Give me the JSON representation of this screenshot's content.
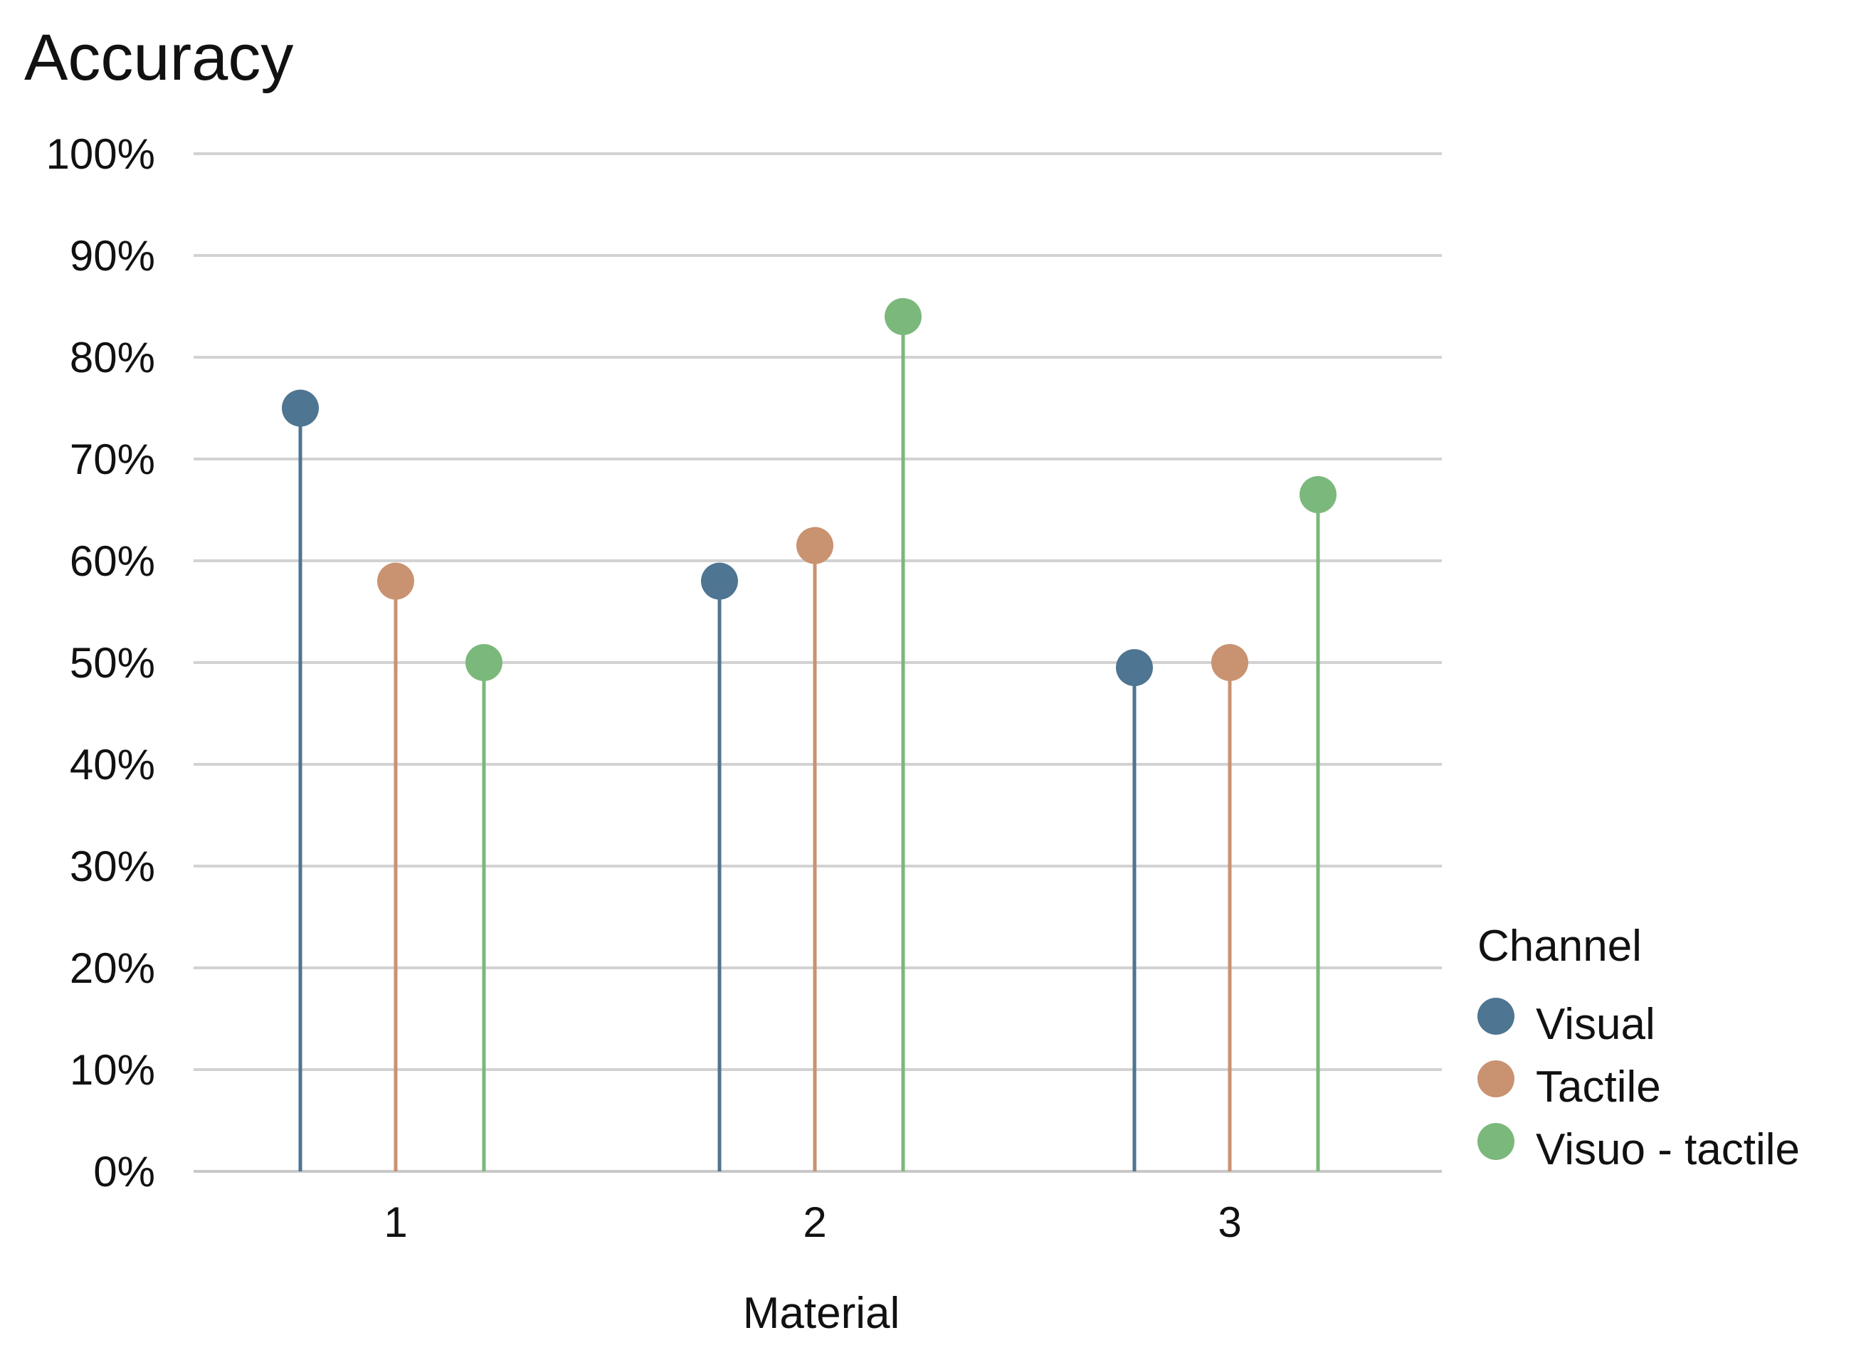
{
  "chart_data": {
    "type": "lollipop",
    "title": "Accuracy",
    "xlabel": "Material",
    "ylabel": "",
    "categories": [
      "1",
      "2",
      "3"
    ],
    "ylim": [
      0,
      100
    ],
    "y_ticks": [
      "0%",
      "10%",
      "20%",
      "30%",
      "40%",
      "50%",
      "60%",
      "70%",
      "80%",
      "90%",
      "100%"
    ],
    "grid": true,
    "legend": {
      "title": "Channel",
      "placement": "right-bottom"
    },
    "series": [
      {
        "name": "Visual",
        "color": "#4e7591",
        "values": [
          75,
          58,
          49.5
        ]
      },
      {
        "name": "Tactile",
        "color": "#c99271",
        "values": [
          58,
          61.5,
          50
        ]
      },
      {
        "name": "Visuo - tactile",
        "color": "#7bb87b",
        "values": [
          50,
          84,
          66.5
        ]
      }
    ]
  }
}
